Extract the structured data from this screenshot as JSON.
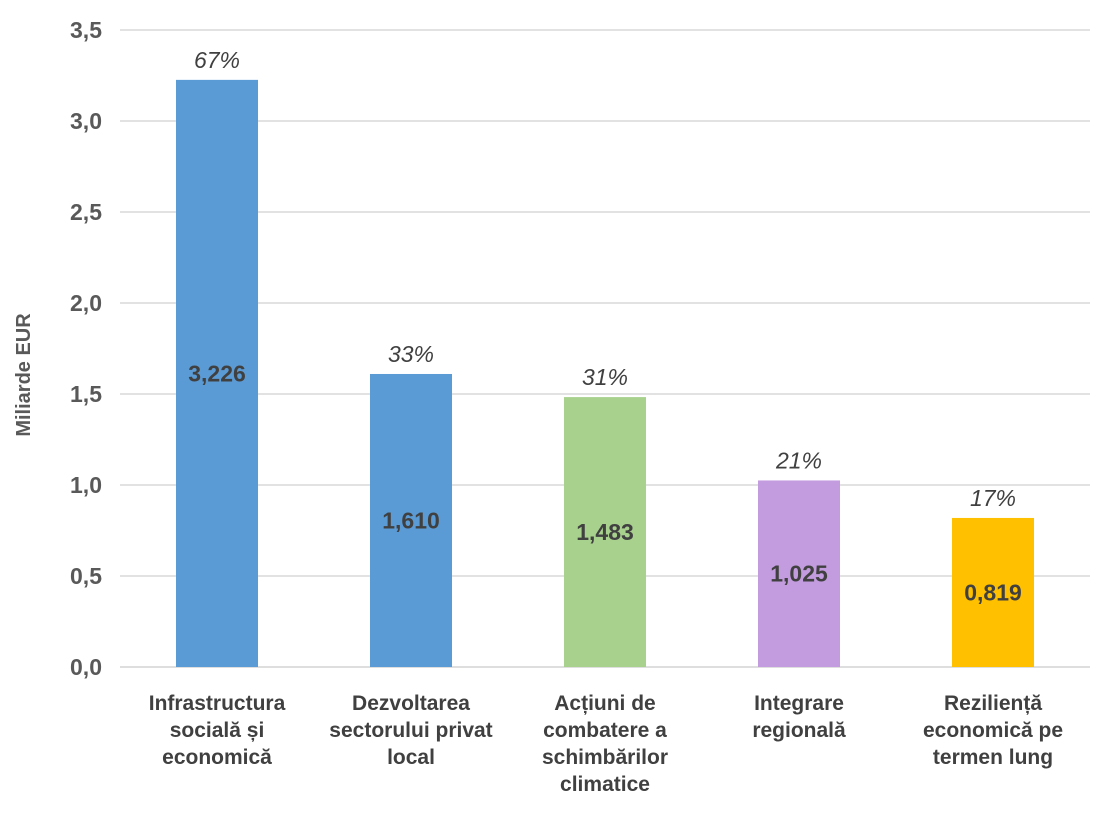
{
  "chart_data": {
    "type": "bar",
    "ylabel": "Miliarde EUR",
    "ylim": [
      0,
      3.5
    ],
    "yticks": [
      "0,0",
      "0,5",
      "1,0",
      "1,5",
      "2,0",
      "2,5",
      "3,0",
      "3,5"
    ],
    "grid": true,
    "categories": [
      [
        "Infrastructura",
        "socială și",
        "economică"
      ],
      [
        "Dezvoltarea",
        "sectorului privat",
        "local"
      ],
      [
        "Acțiuni de",
        "combatere a",
        "schimbărilor",
        "climatice"
      ],
      [
        "Integrare",
        "regională"
      ],
      [
        "Reziliență",
        "economică pe",
        "termen lung"
      ]
    ],
    "values": [
      3.226,
      1.61,
      1.483,
      1.025,
      0.819
    ],
    "value_labels": [
      "3,226",
      "1,610",
      "1,483",
      "1,025",
      "0,819"
    ],
    "percent_labels": [
      "67%",
      "33%",
      "31%",
      "21%",
      "17%"
    ],
    "colors": [
      "#5b9bd5",
      "#5b9bd5",
      "#a9d18e",
      "#c39bdf",
      "#ffc000"
    ]
  }
}
